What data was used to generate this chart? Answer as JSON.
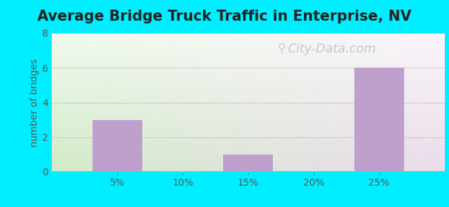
{
  "title": "Average Bridge Truck Traffic in Enterprise, NV",
  "ylabel": "number of bridges",
  "x_labels": [
    "5%",
    "10%",
    "15%",
    "20%",
    "25%"
  ],
  "x_positions": [
    5,
    10,
    15,
    20,
    25
  ],
  "bar_data": [
    {
      "x": 5,
      "height": 3
    },
    {
      "x": 15,
      "height": 1
    },
    {
      "x": 25,
      "height": 6
    }
  ],
  "bar_color": "#bf9fcc",
  "bar_width": 3.8,
  "ylim": [
    0,
    8
  ],
  "yticks": [
    0,
    2,
    4,
    6,
    8
  ],
  "xlim": [
    0,
    30
  ],
  "outer_bg": "#00eeff",
  "grid_color": "#ccbbcc",
  "title_fontsize": 15,
  "ylabel_fontsize": 10,
  "tick_fontsize": 10,
  "watermark_text": "City-Data.com",
  "watermark_color": "#aabbcc",
  "watermark_fontsize": 13,
  "title_color": "#222222",
  "ylabel_color": "#555555",
  "tick_color": "#555555"
}
